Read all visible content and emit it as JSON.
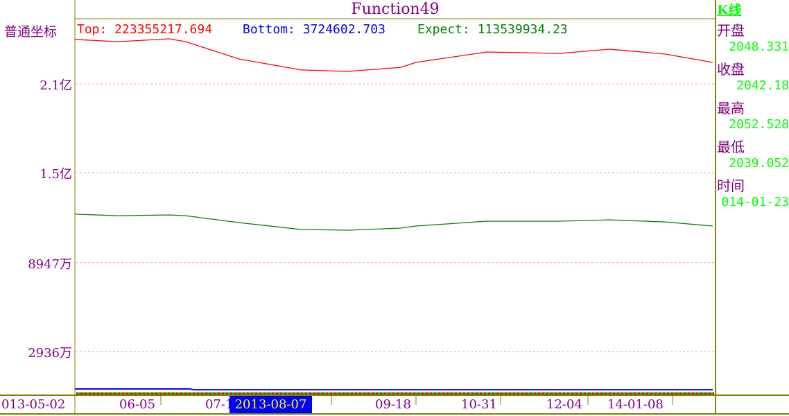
{
  "title": "Function49",
  "mode": "普通坐标",
  "info": {
    "top": "Top: 223355217.694",
    "bottom": "Bottom: 3724602.703",
    "expect": "Expect: 113539934.23"
  },
  "colors": {
    "top": "#ff0000",
    "bottom": "#0000ff",
    "expect": "#008000",
    "axis": "#808000",
    "text": "#800080",
    "grid": "#ff80ff"
  },
  "right_panel": {
    "k_label": "K线",
    "items": [
      {
        "k": "开盘",
        "v": "2048.331"
      },
      {
        "k": "收盘",
        "v": "2042.18"
      },
      {
        "k": "最高",
        "v": "2052.528"
      },
      {
        "k": "最低",
        "v": "2039.052"
      },
      {
        "k": "时间",
        "v": "014-01-23"
      }
    ]
  },
  "cursor_date": "2013-08-07",
  "chart_data": {
    "type": "line",
    "y_unit": "millions",
    "y_ticks": [
      {
        "label": "2.1亿",
        "value": 210
      },
      {
        "label": "1.5亿",
        "value": 150
      },
      {
        "label": "8947万",
        "value": 89.47
      },
      {
        "label": "2936万",
        "value": 29.36
      }
    ],
    "x_ticks": [
      {
        "label": "013-05-02",
        "date": "2013-05-02"
      },
      {
        "label": "06-05",
        "date": "2013-06-05"
      },
      {
        "label": "07-15",
        "date": "2013-07-15"
      },
      {
        "label": "09-18",
        "date": "2013-09-18"
      },
      {
        "label": "10-31",
        "date": "2013-10-31"
      },
      {
        "label": "12-04",
        "date": "2013-12-04"
      },
      {
        "label": "14-01-08",
        "date": "2014-01-08"
      }
    ],
    "grid": "horizontal dashed",
    "series": [
      {
        "name": "Top",
        "color": "#ff0000",
        "points": [
          [
            "2013-05-02",
            240
          ],
          [
            "2013-05-19",
            238.5
          ],
          [
            "2013-06-07",
            240.4
          ],
          [
            "2013-06-11",
            238.5
          ],
          [
            "2013-06-24",
            226.8
          ],
          [
            "2013-07-09",
            219.4
          ],
          [
            "2013-07-31",
            218.4
          ],
          [
            "2013-09-07",
            221.2
          ],
          [
            "2013-09-18",
            224.5
          ],
          [
            "2013-10-24",
            231.5
          ],
          [
            "2013-11-23",
            230.6
          ],
          [
            "2013-12-13",
            233.4
          ],
          [
            "2014-01-05",
            230.1
          ],
          [
            "2014-01-23",
            224.5
          ]
        ]
      },
      {
        "name": "Expect",
        "color": "#008000",
        "points": [
          [
            "2013-05-02",
            122.1
          ],
          [
            "2013-05-19",
            121.1
          ],
          [
            "2013-06-07",
            121.6
          ],
          [
            "2013-06-11",
            121.1
          ],
          [
            "2013-06-24",
            116.4
          ],
          [
            "2013-07-09",
            111.8
          ],
          [
            "2013-07-31",
            111.3
          ],
          [
            "2013-09-07",
            112.7
          ],
          [
            "2013-09-18",
            114.1
          ],
          [
            "2013-10-24",
            117.4
          ],
          [
            "2013-11-23",
            117.4
          ],
          [
            "2013-12-13",
            118.3
          ],
          [
            "2014-01-05",
            116.9
          ],
          [
            "2014-01-23",
            114.1
          ]
        ]
      },
      {
        "name": "Bottom",
        "color": "#0000ff",
        "points": [
          [
            "2013-05-02",
            4.2
          ],
          [
            "2013-06-12",
            4.2
          ],
          [
            "2013-06-13",
            3.7
          ],
          [
            "2014-01-23",
            3.7
          ]
        ]
      }
    ]
  }
}
